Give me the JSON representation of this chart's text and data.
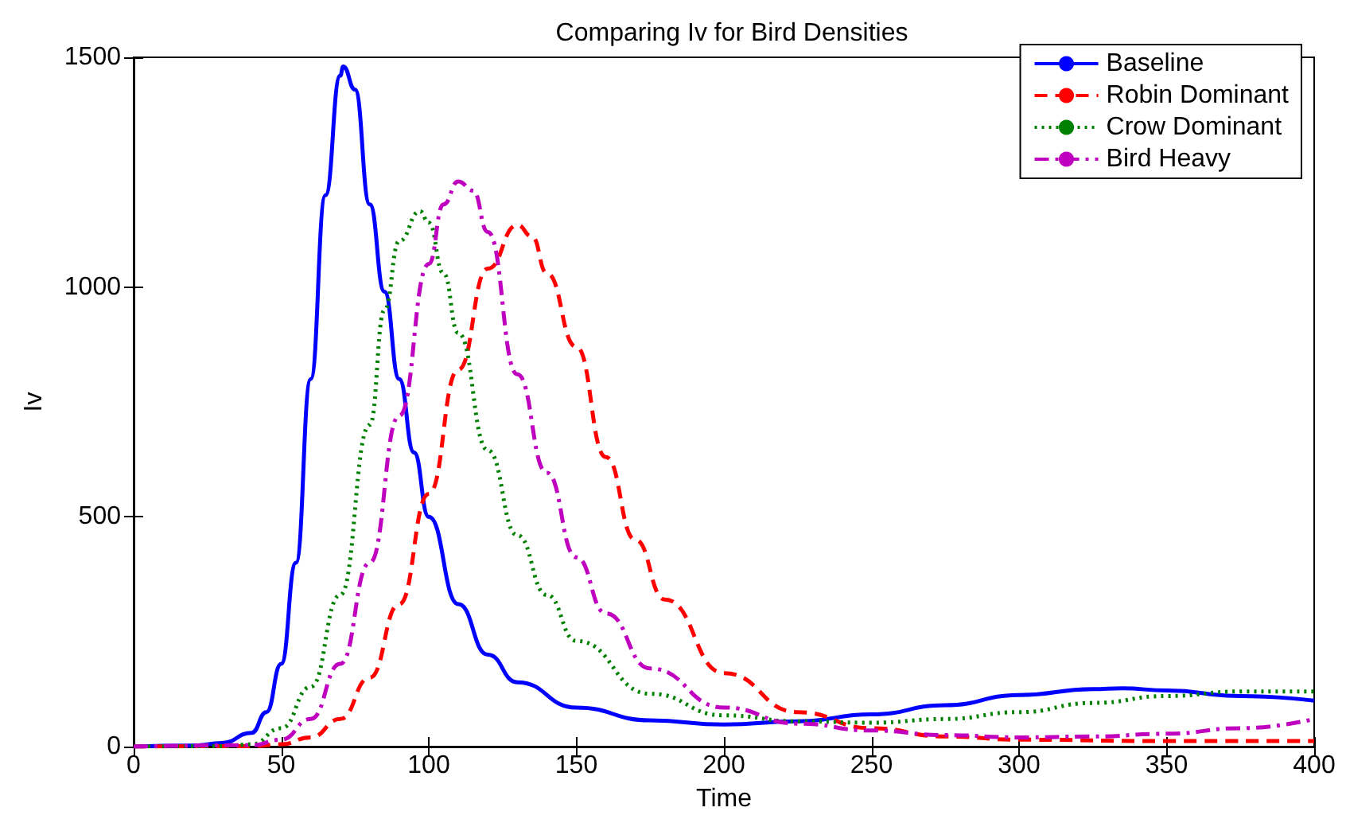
{
  "chart_data": {
    "type": "line",
    "title": "Comparing Iv for Bird Densities",
    "xlabel": "Time",
    "ylabel": "Iv",
    "xlim": [
      0,
      400
    ],
    "xticks": [
      0,
      50,
      100,
      150,
      200,
      250,
      300,
      350,
      400
    ],
    "ylim": [
      0,
      1500
    ],
    "yticks": [
      0,
      500,
      1000,
      1500
    ],
    "grid": false,
    "legend": "top right",
    "marker": "none",
    "series": [
      {
        "name": "Baseline",
        "color": "#0000ff",
        "line_style": "solid",
        "x": [
          0,
          20,
          30,
          40,
          45,
          50,
          55,
          60,
          65,
          70,
          71,
          75,
          80,
          85,
          90,
          95,
          100,
          110,
          120,
          130,
          150,
          175,
          200,
          225,
          250,
          275,
          300,
          325,
          335,
          350,
          375,
          400
        ],
        "values": [
          0,
          2,
          8,
          30,
          75,
          180,
          400,
          800,
          1200,
          1460,
          1480,
          1430,
          1180,
          990,
          800,
          640,
          500,
          310,
          200,
          140,
          85,
          57,
          48,
          55,
          70,
          90,
          112,
          125,
          127,
          122,
          110,
          100
        ]
      },
      {
        "name": "Robin Dominant",
        "color": "#ff0000",
        "line_style": "dashed",
        "x": [
          0,
          40,
          50,
          60,
          70,
          80,
          90,
          100,
          110,
          120,
          130,
          135,
          140,
          150,
          160,
          170,
          180,
          200,
          225,
          250,
          275,
          300,
          350,
          400
        ],
        "values": [
          0,
          1,
          5,
          20,
          60,
          150,
          310,
          550,
          820,
          1040,
          1135,
          1110,
          1030,
          870,
          630,
          450,
          320,
          160,
          75,
          40,
          22,
          15,
          12,
          12
        ]
      },
      {
        "name": "Crow Dominant",
        "color": "#008000",
        "line_style": "dotted",
        "x": [
          0,
          30,
          40,
          50,
          60,
          70,
          80,
          85,
          90,
          97,
          100,
          105,
          110,
          120,
          130,
          140,
          150,
          175,
          200,
          225,
          250,
          275,
          300,
          325,
          350,
          375,
          400
        ],
        "values": [
          0,
          1,
          5,
          40,
          130,
          330,
          700,
          950,
          1100,
          1165,
          1140,
          1030,
          900,
          645,
          460,
          330,
          230,
          115,
          68,
          55,
          52,
          60,
          75,
          95,
          110,
          120,
          120
        ]
      },
      {
        "name": "Bird Heavy",
        "color": "#bf00bf",
        "line_style": "dashdot",
        "x": [
          0,
          40,
          50,
          60,
          70,
          80,
          90,
          100,
          105,
          110,
          115,
          120,
          130,
          140,
          150,
          160,
          175,
          200,
          225,
          250,
          275,
          300,
          325,
          350,
          375,
          400
        ],
        "values": [
          0,
          3,
          15,
          60,
          180,
          400,
          720,
          1050,
          1180,
          1230,
          1210,
          1120,
          810,
          596,
          412,
          290,
          170,
          85,
          50,
          35,
          25,
          20,
          22,
          28,
          40,
          60
        ]
      }
    ]
  }
}
